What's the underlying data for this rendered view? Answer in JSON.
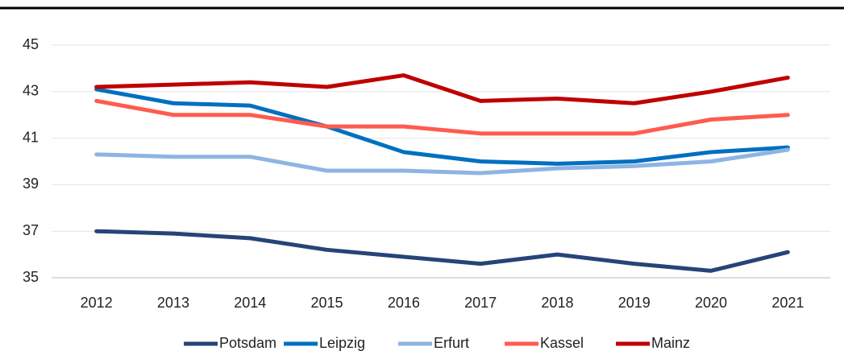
{
  "chart_data": {
    "type": "line",
    "categories": [
      "2012",
      "2013",
      "2014",
      "2015",
      "2016",
      "2017",
      "2018",
      "2019",
      "2020",
      "2021"
    ],
    "series": [
      {
        "name": "Potsdam",
        "color": "#264478",
        "values": [
          37.0,
          36.9,
          36.7,
          36.2,
          35.9,
          35.6,
          36.0,
          35.6,
          35.3,
          36.1
        ]
      },
      {
        "name": "Leipzig",
        "color": "#0070c0",
        "values": [
          43.1,
          42.5,
          42.4,
          41.5,
          40.4,
          40.0,
          39.9,
          40.0,
          40.4,
          40.6
        ]
      },
      {
        "name": "Erfurt",
        "color": "#8eb4e3",
        "values": [
          40.3,
          40.2,
          40.2,
          39.6,
          39.6,
          39.5,
          39.7,
          39.8,
          40.0,
          40.5
        ]
      },
      {
        "name": "Kassel",
        "color": "#ff5b4f",
        "values": [
          42.6,
          42.0,
          42.0,
          41.5,
          41.5,
          41.2,
          41.2,
          41.2,
          41.8,
          42.0
        ]
      },
      {
        "name": "Mainz",
        "color": "#c00000",
        "values": [
          43.2,
          43.3,
          43.4,
          43.2,
          43.7,
          42.6,
          42.7,
          42.5,
          43.0,
          43.6
        ]
      }
    ],
    "ylim": [
      35,
      45
    ],
    "yticks": [
      35,
      37,
      39,
      41,
      43,
      45
    ],
    "grid": true,
    "legend": "bottom"
  }
}
